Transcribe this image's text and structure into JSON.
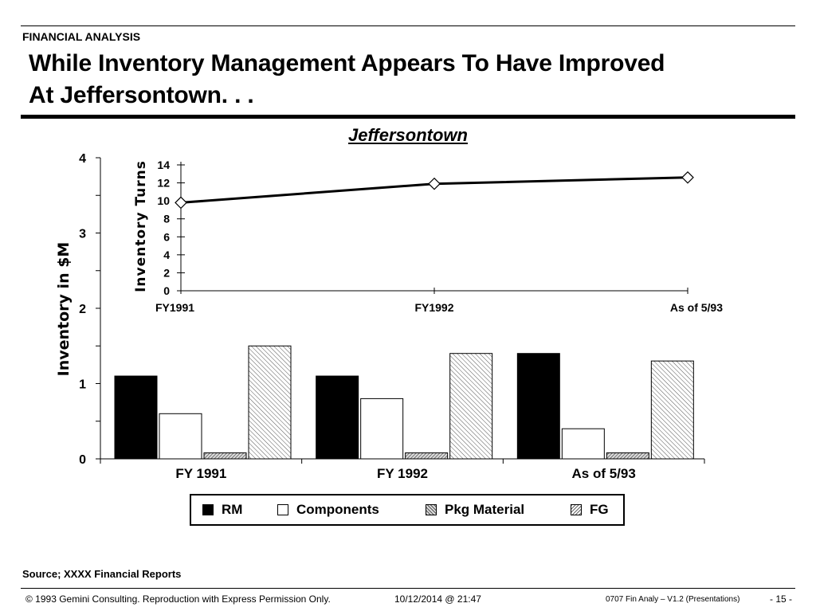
{
  "header": {
    "section_label": "FINANCIAL ANALYSIS",
    "title_line1": "While Inventory Management Appears To Have Improved",
    "title_line2": "At Jeffersontown. . ."
  },
  "chart_data": [
    {
      "type": "bar",
      "title": "Jeffersontown",
      "categories": [
        "FY 1991",
        "FY 1992",
        "As of 5/93"
      ],
      "ylabel": "Inventory in $M",
      "ylim": [
        0,
        4
      ],
      "yticks": [
        "0",
        "1",
        "2",
        "3",
        "4"
      ],
      "series": [
        {
          "name": "RM",
          "values": [
            1.1,
            1.1,
            1.4
          ]
        },
        {
          "name": "Components",
          "values": [
            0.6,
            0.8,
            0.4
          ]
        },
        {
          "name": "Pkg Material",
          "values": [
            0.08,
            0.08,
            0.08
          ]
        },
        {
          "name": "FG",
          "values": [
            1.5,
            1.4,
            1.3
          ]
        }
      ],
      "legend": "bottom"
    },
    {
      "type": "line",
      "categories": [
        "FY1991",
        "FY1992",
        "As of 5/93"
      ],
      "ylabel": "Inventory Turns",
      "ylim": [
        0,
        14
      ],
      "yticks": [
        "0",
        "2",
        "4",
        "6",
        "8",
        "10",
        "12",
        "14"
      ],
      "series": [
        {
          "values": [
            9.8,
            11.9,
            12.6
          ]
        }
      ]
    }
  ],
  "footer": {
    "source": "Source; XXXX Financial Reports",
    "copyright": "© 1993 Gemini Consulting. Reproduction with Express Permission Only.",
    "date": "10/12/2014 @ 21:47",
    "doc": "0707 Fin Analy – V1.2 (Presentations)",
    "page": "- 15 -"
  },
  "colors": {
    "rm": "#000000",
    "components": "#ffffff",
    "pkg": "#9a9a9a",
    "fg": "#d8d8d8"
  }
}
